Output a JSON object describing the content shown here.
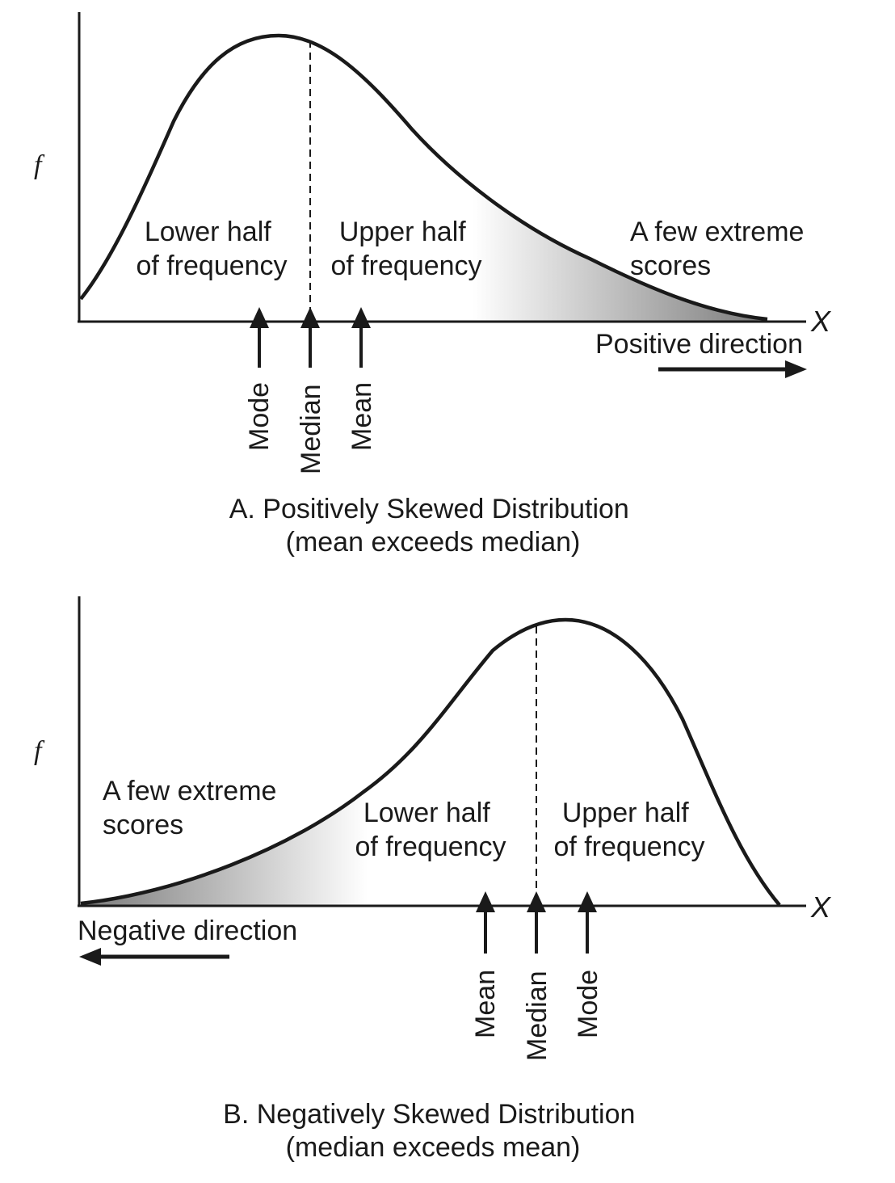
{
  "panel_a": {
    "y_axis_label": "f",
    "x_axis_label": "X",
    "lower_half": [
      "Lower half",
      "of frequency"
    ],
    "upper_half": [
      "Upper half",
      "of frequency"
    ],
    "extreme": [
      "A few extreme",
      "scores"
    ],
    "direction": "Positive direction",
    "markers": [
      "Mode",
      "Median",
      "Mean"
    ],
    "caption": [
      "A. Positively Skewed Distribution",
      "(mean exceeds median)"
    ]
  },
  "panel_b": {
    "y_axis_label": "f",
    "x_axis_label": "X",
    "extreme": [
      "A few extreme",
      "scores"
    ],
    "lower_half": [
      "Lower half",
      "of frequency"
    ],
    "upper_half": [
      "Upper half",
      "of frequency"
    ],
    "direction": "Negative direction",
    "markers": [
      "Mean",
      "Median",
      "Mode"
    ],
    "caption": [
      "B. Negatively Skewed Distribution",
      "(median exceeds mean)"
    ]
  }
}
